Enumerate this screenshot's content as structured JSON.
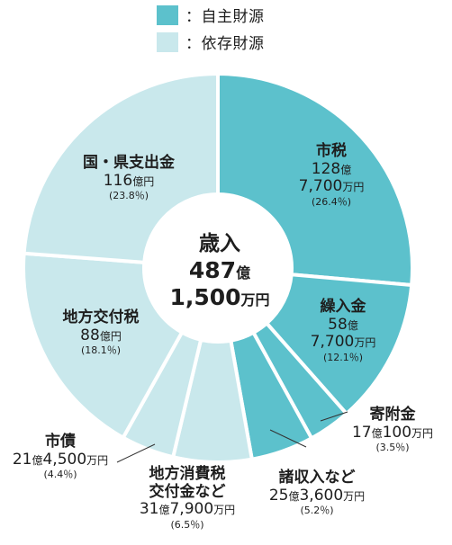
{
  "legend": [
    {
      "label": "：自主財源",
      "color": "#5cc1cc"
    },
    {
      "label": "：依存財源",
      "color": "#c9e8ec"
    }
  ],
  "center": {
    "title": "歳入",
    "oku_num": "487",
    "oku_unit": "億",
    "man_num": "1,500",
    "man_unit": "万円"
  },
  "chart_data": {
    "type": "pie",
    "title": "歳入",
    "slices": [
      {
        "name": "市税",
        "value": 26.4,
        "group": "自主財源",
        "color": "#5cc1cc"
      },
      {
        "name": "繰入金",
        "value": 12.1,
        "group": "自主財源",
        "color": "#5cc1cc"
      },
      {
        "name": "寄附金",
        "value": 3.5,
        "group": "自主財源",
        "color": "#5cc1cc"
      },
      {
        "name": "諸収入など",
        "value": 5.2,
        "group": "自主財源",
        "color": "#5cc1cc"
      },
      {
        "name": "地方消費税交付金など",
        "value": 6.5,
        "group": "依存財源",
        "color": "#c9e8ec"
      },
      {
        "name": "市債",
        "value": 4.4,
        "group": "依存財源",
        "color": "#c9e8ec"
      },
      {
        "name": "地方交付税",
        "value": 18.1,
        "group": "依存財源",
        "color": "#c9e8ec"
      },
      {
        "name": "国・県支出金",
        "value": 23.8,
        "group": "依存財源",
        "color": "#c9e8ec"
      }
    ]
  },
  "labels": {
    "shizei": {
      "name": "市税",
      "oku_num": "128",
      "oku_unit": "億",
      "man_num": "7,700",
      "man_unit": "万円",
      "pct": "(26.4％)"
    },
    "kuriire": {
      "name": "繰入金",
      "oku_num": "58",
      "oku_unit": "億",
      "man_num": "7,700",
      "man_unit": "万円",
      "pct": "(12.1％)"
    },
    "kifu": {
      "name": "寄附金",
      "oku_num": "17",
      "oku_unit": "億",
      "man_num": "100",
      "man_unit": "万円",
      "pct": "(3.5％)"
    },
    "shoshu": {
      "name": "諸収入など",
      "oku_num": "25",
      "oku_unit": "億",
      "man_num": "3,600",
      "man_unit": "万円",
      "pct": "(5.2％)"
    },
    "shohi": {
      "name1": "地方消費税",
      "name2": "交付金など",
      "oku_num": "31",
      "oku_unit": "億",
      "man_num": "7,900",
      "man_unit": "万円",
      "pct": "(6.5％)"
    },
    "shisai": {
      "name": "市債",
      "oku_num": "21",
      "oku_unit": "億",
      "man_num": "4,500",
      "man_unit": "万円",
      "pct": "(4.4％)"
    },
    "kotsuzei": {
      "name": "地方交付税",
      "amount": "88",
      "unit": "億円",
      "pct": "(18.1％)"
    },
    "kokuken": {
      "name": "国・県支出金",
      "amount": "116",
      "unit": "億円",
      "pct": "(23.8％)"
    }
  }
}
